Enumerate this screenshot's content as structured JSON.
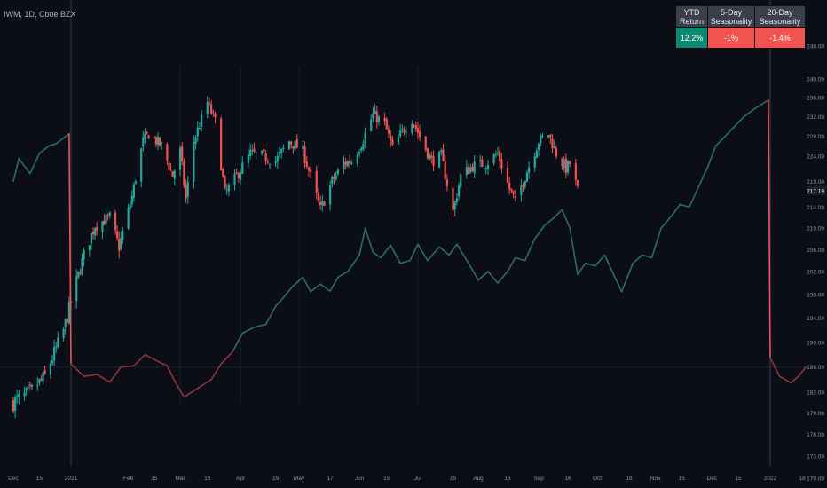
{
  "header": {
    "title": "IWM, 1D, Cboe BZX"
  },
  "table": {
    "headers": [
      "YTD Return",
      "5-Day Seasonality",
      "20-Day Seasonality"
    ],
    "values": [
      "12.2%",
      "-1%",
      "-1.4%"
    ],
    "colors": [
      "#0c8a71",
      "#f05350",
      "#f05350"
    ]
  },
  "colors": {
    "background": "#0b0d17",
    "up": "#26a69a",
    "down": "#ef5350",
    "seasonal_up": "#2f6b66",
    "seasonal_down": "#8f3438",
    "price_tag": "#1a1e2b"
  },
  "chart_data": {
    "type": "candlestick",
    "y_axis": {
      "ticks": [
        170,
        173,
        176,
        179,
        182,
        186,
        190,
        194,
        198,
        202,
        206,
        210,
        214,
        219,
        224,
        228,
        232,
        236,
        240,
        248
      ],
      "scale": "log"
    },
    "x_axis": {
      "ticks": [
        "Dec",
        "15",
        "2021",
        "Feb",
        "15",
        "Mar",
        "15",
        "Apr",
        "19",
        "May",
        "17",
        "Jun",
        "15",
        "Jul",
        "19",
        "Aug",
        "16",
        "Sep",
        "16",
        "Oct",
        "18",
        "Nov",
        "15",
        "Dec",
        "15",
        "2022",
        "18"
      ]
    },
    "last_price": 217.19,
    "price_path": [
      [
        "2020-12-01",
        180.5
      ],
      [
        "2020-12-10",
        182.0
      ],
      [
        "2020-12-18",
        184.5
      ],
      [
        "2020-12-28",
        192.0
      ],
      [
        "2021-01-08",
        205.0
      ],
      [
        "2021-01-14",
        210.5
      ],
      [
        "2021-01-22",
        212.0
      ],
      [
        "2021-01-27",
        206.5
      ],
      [
        "2021-02-03",
        216.0
      ],
      [
        "2021-02-09",
        227.0
      ],
      [
        "2021-02-12",
        228.5
      ],
      [
        "2021-02-19",
        226.0
      ],
      [
        "2021-02-25",
        220.0
      ],
      [
        "2021-03-01",
        225.0
      ],
      [
        "2021-03-04",
        215.5
      ],
      [
        "2021-03-08",
        227.0
      ],
      [
        "2021-03-15",
        235.0
      ],
      [
        "2021-03-19",
        231.0
      ],
      [
        "2021-03-24",
        216.5
      ],
      [
        "2021-03-30",
        220.0
      ],
      [
        "2021-04-06",
        224.5
      ],
      [
        "2021-04-12",
        224.0
      ],
      [
        "2021-04-19",
        223.0
      ],
      [
        "2021-04-26",
        227.0
      ],
      [
        "2021-05-03",
        225.0
      ],
      [
        "2021-05-12",
        213.5
      ],
      [
        "2021-05-18",
        219.0
      ],
      [
        "2021-05-24",
        222.5
      ],
      [
        "2021-05-28",
        223.0
      ],
      [
        "2021-06-02",
        226.5
      ],
      [
        "2021-06-08",
        232.5
      ],
      [
        "2021-06-14",
        230.5
      ],
      [
        "2021-06-18",
        225.5
      ],
      [
        "2021-06-23",
        229.0
      ],
      [
        "2021-06-28",
        231.5
      ],
      [
        "2021-07-02",
        228.0
      ],
      [
        "2021-07-08",
        223.0
      ],
      [
        "2021-07-13",
        224.0
      ],
      [
        "2021-07-19",
        213.0
      ],
      [
        "2021-07-23",
        220.0
      ],
      [
        "2021-07-29",
        222.0
      ],
      [
        "2021-08-05",
        222.5
      ],
      [
        "2021-08-11",
        224.5
      ],
      [
        "2021-08-17",
        217.5
      ],
      [
        "2021-08-20",
        215.0
      ],
      [
        "2021-08-26",
        221.0
      ],
      [
        "2021-09-01",
        227.0
      ],
      [
        "2021-09-06",
        228.5
      ],
      [
        "2021-09-10",
        224.5
      ],
      [
        "2021-09-15",
        221.5
      ],
      [
        "2021-09-17",
        222.5
      ],
      [
        "2021-09-21",
        217.19
      ]
    ],
    "seasonality_path": [
      [
        "2020-12-01",
        219.0
      ],
      [
        "2020-12-04",
        223.5
      ],
      [
        "2020-12-10",
        220.5
      ],
      [
        "2020-12-15",
        224.5
      ],
      [
        "2020-12-20",
        226.0
      ],
      [
        "2020-12-24",
        226.5
      ],
      [
        "2020-12-31",
        228.5
      ],
      [
        "2021-01-01",
        186.5
      ],
      [
        "2021-01-08",
        184.5
      ],
      [
        "2021-01-15",
        184.8
      ],
      [
        "2021-01-22",
        183.6
      ],
      [
        "2021-01-28",
        186.0
      ],
      [
        "2021-02-04",
        186.2
      ],
      [
        "2021-02-10",
        188.0
      ],
      [
        "2021-02-15",
        187.2
      ],
      [
        "2021-02-22",
        186.2
      ],
      [
        "2021-02-26",
        183.8
      ],
      [
        "2021-03-03",
        181.3
      ],
      [
        "2021-03-08",
        182.2
      ],
      [
        "2021-03-12",
        183.0
      ],
      [
        "2021-03-17",
        184.0
      ],
      [
        "2021-03-22",
        186.5
      ],
      [
        "2021-03-28",
        188.5
      ],
      [
        "2021-04-02",
        191.5
      ],
      [
        "2021-04-08",
        192.5
      ],
      [
        "2021-04-14",
        193.0
      ],
      [
        "2021-04-19",
        196.0
      ],
      [
        "2021-04-23",
        197.5
      ],
      [
        "2021-04-28",
        199.5
      ],
      [
        "2021-05-03",
        201.0
      ],
      [
        "2021-05-07",
        198.5
      ],
      [
        "2021-05-12",
        199.8
      ],
      [
        "2021-05-17",
        198.6
      ],
      [
        "2021-05-21",
        201.0
      ],
      [
        "2021-05-26",
        202.0
      ],
      [
        "2021-06-01",
        205.0
      ],
      [
        "2021-06-04",
        210.0
      ],
      [
        "2021-06-08",
        205.5
      ],
      [
        "2021-06-12",
        204.5
      ],
      [
        "2021-06-17",
        206.8
      ],
      [
        "2021-06-22",
        203.5
      ],
      [
        "2021-06-27",
        204.0
      ],
      [
        "2021-07-01",
        207.0
      ],
      [
        "2021-07-06",
        204.0
      ],
      [
        "2021-07-12",
        206.5
      ],
      [
        "2021-07-17",
        205.0
      ],
      [
        "2021-07-21",
        207.0
      ],
      [
        "2021-07-27",
        203.5
      ],
      [
        "2021-08-01",
        200.5
      ],
      [
        "2021-08-06",
        202.0
      ],
      [
        "2021-08-11",
        200.0
      ],
      [
        "2021-08-16",
        202.0
      ],
      [
        "2021-08-20",
        204.5
      ],
      [
        "2021-08-25",
        204.0
      ],
      [
        "2021-08-30",
        208.0
      ],
      [
        "2021-09-04",
        210.5
      ],
      [
        "2021-09-09",
        212.0
      ],
      [
        "2021-09-13",
        213.5
      ],
      [
        "2021-09-17",
        210.0
      ],
      [
        "2021-09-21",
        201.5
      ],
      [
        "2021-09-25",
        203.5
      ],
      [
        "2021-09-30",
        203.0
      ],
      [
        "2021-10-05",
        205.0
      ],
      [
        "2021-10-09",
        202.0
      ],
      [
        "2021-10-14",
        198.5
      ],
      [
        "2021-10-20",
        203.5
      ],
      [
        "2021-10-25",
        205.0
      ],
      [
        "2021-10-30",
        204.5
      ],
      [
        "2021-11-04",
        210.0
      ],
      [
        "2021-11-10",
        212.5
      ],
      [
        "2021-11-14",
        214.5
      ],
      [
        "2021-11-19",
        214.0
      ],
      [
        "2021-11-24",
        218.0
      ],
      [
        "2021-11-29",
        222.0
      ],
      [
        "2021-12-03",
        226.0
      ],
      [
        "2021-12-08",
        228.0
      ],
      [
        "2021-12-13",
        230.0
      ],
      [
        "2021-12-18",
        232.0
      ],
      [
        "2021-12-23",
        233.5
      ],
      [
        "2021-12-31",
        235.5
      ],
      [
        "2022-01-01",
        187.5
      ],
      [
        "2022-01-06",
        184.5
      ],
      [
        "2022-01-12",
        183.5
      ],
      [
        "2022-01-16",
        184.5
      ],
      [
        "2022-01-20",
        186.0
      ]
    ]
  }
}
